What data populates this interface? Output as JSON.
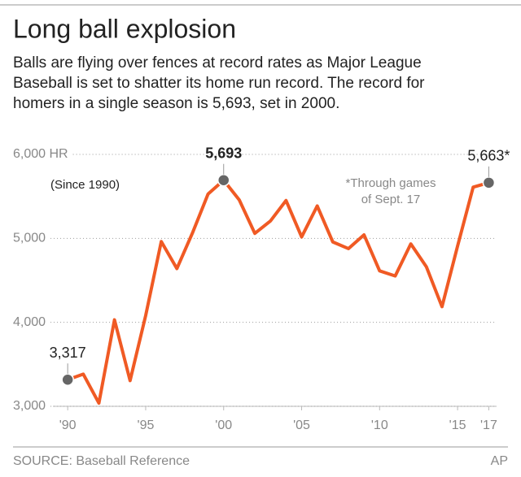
{
  "chart_data": {
    "type": "line",
    "title": "Long ball explosion",
    "subtitle": [
      "Balls are flying over fences at record rates as Major League",
      "Baseball is set to shatter its home run record. The record for",
      "homers in a single season is 5,693, set in 2000."
    ],
    "note": "(Since 1990)",
    "annotation": [
      "*Through games",
      "of Sept. 17"
    ],
    "source": "SOURCE: Baseball Reference",
    "credit": "AP",
    "x": [
      1990,
      1991,
      1992,
      1993,
      1994,
      1995,
      1996,
      1997,
      1998,
      1999,
      2000,
      2001,
      2002,
      2003,
      2004,
      2005,
      2006,
      2007,
      2008,
      2009,
      2010,
      2011,
      2012,
      2013,
      2014,
      2015,
      2016,
      2017
    ],
    "values": [
      3317,
      3383,
      3038,
      4030,
      3306,
      4081,
      4962,
      4640,
      5064,
      5528,
      5693,
      5458,
      5059,
      5207,
      5451,
      5017,
      5386,
      4957,
      4878,
      5042,
      4613,
      4552,
      4934,
      4661,
      4186,
      4909,
      5610,
      5663
    ],
    "value_labels": [
      "3,317",
      null,
      null,
      null,
      null,
      null,
      null,
      null,
      null,
      null,
      "5,693",
      null,
      null,
      null,
      null,
      null,
      null,
      null,
      null,
      null,
      null,
      null,
      null,
      null,
      null,
      null,
      null,
      "5,663*"
    ],
    "color": "#f05a24",
    "xlim": [
      1989,
      2017.5
    ],
    "xticks": [
      {
        "value": 1990,
        "label": "'90"
      },
      {
        "value": 1995,
        "label": "'95"
      },
      {
        "value": 2000,
        "label": "'00"
      },
      {
        "value": 2005,
        "label": "'05"
      },
      {
        "value": 2010,
        "label": "'10"
      },
      {
        "value": 2015,
        "label": "'15"
      },
      {
        "value": 2017,
        "label": "'17"
      }
    ],
    "ylim": [
      3000,
      6000
    ],
    "yticks": [
      {
        "value": 3000,
        "label": "3,000"
      },
      {
        "value": 4000,
        "label": "4,000"
      },
      {
        "value": 5000,
        "label": "5,000"
      },
      {
        "value": 6000,
        "label": "6,000 HR"
      }
    ],
    "grid": true
  }
}
